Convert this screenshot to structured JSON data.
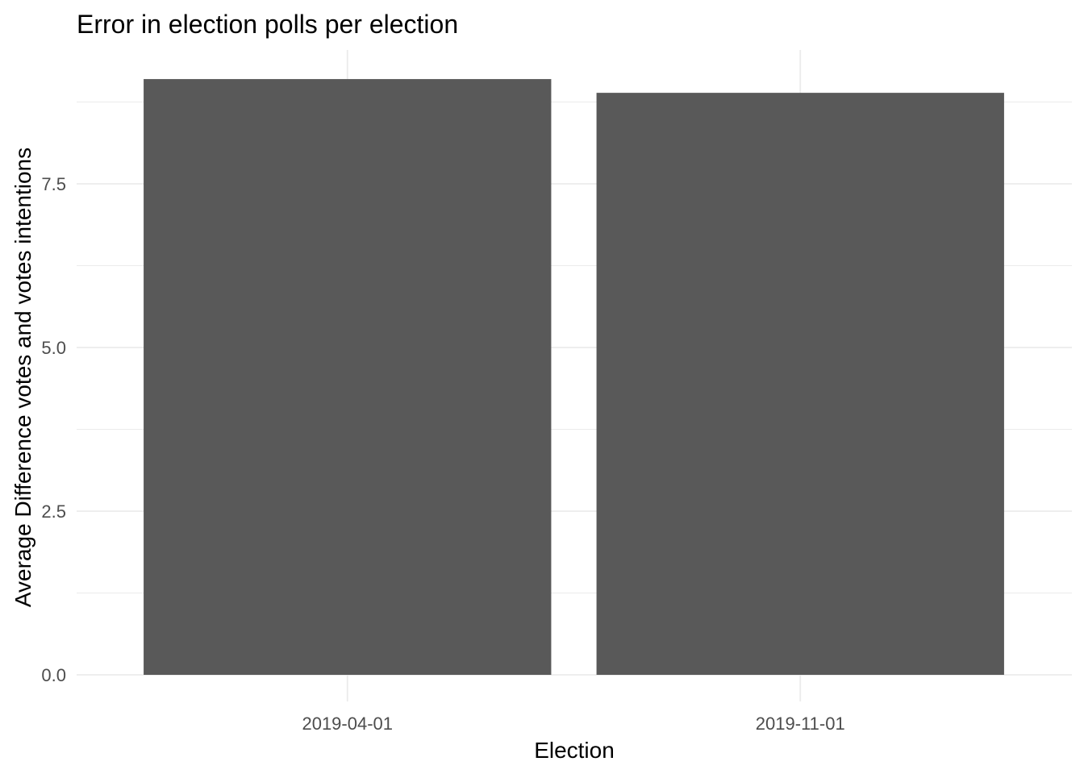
{
  "chart_data": {
    "type": "bar",
    "title": "Error in election polls per election",
    "xlabel": "Election",
    "ylabel": "Average Difference votes and votes intentions",
    "categories": [
      "2019-04-01",
      "2019-11-01"
    ],
    "values": [
      9.1,
      8.89
    ],
    "ylim": [
      0,
      9.55
    ],
    "yticks": [
      0.0,
      2.5,
      5.0,
      7.5
    ],
    "ytick_labels": [
      "0.0",
      "2.5",
      "5.0",
      "7.5"
    ],
    "grid": true,
    "legend": "none",
    "bar_color": "#595959",
    "grid_color": "#ebebeb"
  }
}
